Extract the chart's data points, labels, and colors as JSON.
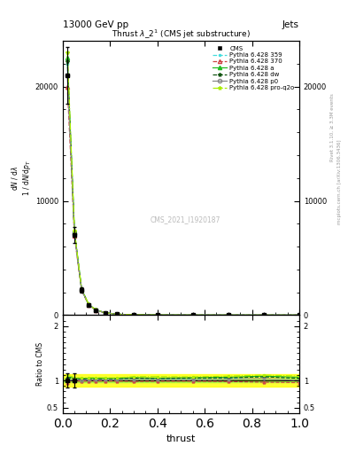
{
  "title_top": "13000 GeV pp",
  "title_right": "Jets",
  "plot_title": "Thrust $\\lambda$_2$^{1}$ (CMS jet substructure)",
  "xlabel": "thrust",
  "ylabel_ratio": "Ratio to CMS",
  "watermark": "CMS_2021_I1920187",
  "rivet_text": "Rivet 3.1.10, ≥ 3.3M events",
  "mcplots_text": "mcplots.cern.ch [arXiv:1306.3436]",
  "x_data": [
    0.02,
    0.05,
    0.08,
    0.11,
    0.14,
    0.18,
    0.23,
    0.3,
    0.4,
    0.55,
    0.7,
    0.85,
    1.0
  ],
  "cms_y": [
    21000,
    7000,
    2200,
    900,
    450,
    200,
    80,
    28,
    7,
    1.5,
    0.5,
    0.15,
    0.05
  ],
  "cms_err": [
    2500,
    700,
    220,
    90,
    45,
    20,
    8,
    3,
    0.7,
    0.2,
    0.06,
    0.02,
    0.006
  ],
  "py359_y": [
    22000,
    7200,
    2250,
    920,
    460,
    205,
    82,
    29,
    7.2,
    1.55,
    0.52,
    0.16,
    0.052
  ],
  "py370_y": [
    20000,
    6900,
    2180,
    890,
    445,
    198,
    79,
    27.5,
    6.9,
    1.48,
    0.49,
    0.145,
    0.048
  ],
  "pya_y": [
    22500,
    7300,
    2280,
    935,
    468,
    208,
    83,
    29.5,
    7.3,
    1.58,
    0.53,
    0.162,
    0.053
  ],
  "pydw_y": [
    22200,
    7250,
    2260,
    925,
    462,
    206,
    82.5,
    29.2,
    7.25,
    1.57,
    0.525,
    0.16,
    0.052
  ],
  "pyp0_y": [
    21000,
    7100,
    2220,
    910,
    455,
    202,
    81,
    28.5,
    7.1,
    1.52,
    0.51,
    0.155,
    0.05
  ],
  "pyq2o_y": [
    23000,
    7400,
    2300,
    950,
    475,
    210,
    84,
    30,
    7.5,
    1.6,
    0.54,
    0.165,
    0.054
  ],
  "ylim_main": [
    0,
    24000
  ],
  "yticks_main": [
    0,
    10000,
    20000
  ],
  "ytick_labels_main": [
    "0",
    "10000",
    "20000"
  ],
  "xlim": [
    0,
    1.0
  ],
  "ylim_ratio": [
    0.4,
    2.2
  ],
  "yticks_ratio": [
    0.5,
    1.0,
    2.0
  ],
  "ytick_labels_ratio": [
    "0.5",
    "1",
    "2"
  ],
  "colors": {
    "cms": "#000000",
    "py359": "#44DDDD",
    "py370": "#CC4444",
    "pya": "#22BB22",
    "pydw": "#115511",
    "pyp0": "#888888",
    "pyq2o": "#AAEE00"
  },
  "ratio_band_yellow": "#FFFF00",
  "ratio_band_green": "#88EE44"
}
